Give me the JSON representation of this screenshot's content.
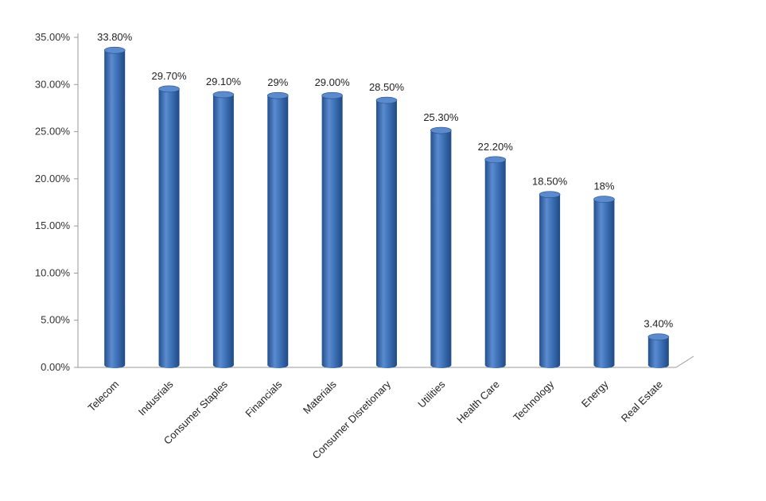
{
  "colors": {
    "bar_main": "#3f72b8",
    "bar_light": "#6b98d6",
    "bar_dark": "#234f8c",
    "bar_top": "#5b8bcc",
    "axis": "#999999"
  },
  "chart_data": {
    "type": "bar",
    "style": "3d-cylinder",
    "categories": [
      "Telecom",
      "Indusrials",
      "Consumer Staples",
      "Financials",
      "Materials",
      "Consumer Disretionary",
      "Utilities",
      "Health Care",
      "Technology",
      "Energy",
      "Real Estate"
    ],
    "values": [
      33.8,
      29.7,
      29.1,
      29.0,
      29.0,
      28.5,
      25.3,
      22.2,
      18.5,
      18.0,
      3.4
    ],
    "data_labels": [
      "33.80%",
      "29.70%",
      "29.10%",
      "29%",
      "29.00%",
      "28.50%",
      "25.30%",
      "22.20%",
      "18.50%",
      "18%",
      "3.40%"
    ],
    "y_ticks": [
      0,
      5,
      10,
      15,
      20,
      25,
      30,
      35
    ],
    "y_tick_labels": [
      "0.00%",
      "5.00%",
      "10.00%",
      "15.00%",
      "20.00%",
      "25.00%",
      "30.00%",
      "35.00%"
    ],
    "ylim": [
      0,
      35
    ],
    "title": "",
    "xlabel": "",
    "ylabel": "",
    "grid": false,
    "legend": "none"
  }
}
